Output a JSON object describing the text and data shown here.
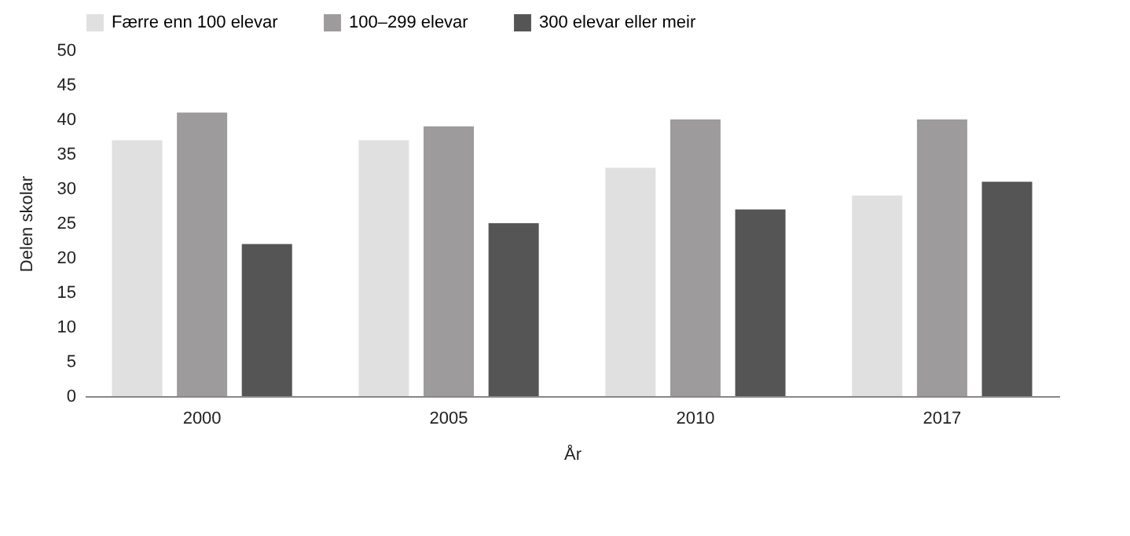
{
  "chart_data": {
    "type": "bar",
    "xlabel": "År",
    "ylabel": "Delen skolar",
    "categories": [
      "2000",
      "2005",
      "2010",
      "2017"
    ],
    "series": [
      {
        "name": "Færre enn 100 elevar",
        "color": "#e0e0e0",
        "values": [
          37,
          37,
          33,
          29
        ]
      },
      {
        "name": "100–299 elevar",
        "color": "#9d9b9b",
        "values": [
          41,
          39,
          40,
          40
        ]
      },
      {
        "name": "300 elevar eller meir",
        "color": "#555555",
        "values": [
          22,
          25,
          27,
          31
        ]
      }
    ],
    "ylim": [
      0,
      50
    ],
    "yticks": [
      0,
      5,
      10,
      15,
      20,
      25,
      30,
      35,
      40,
      45,
      50
    ],
    "grid": false,
    "legend": "top"
  }
}
